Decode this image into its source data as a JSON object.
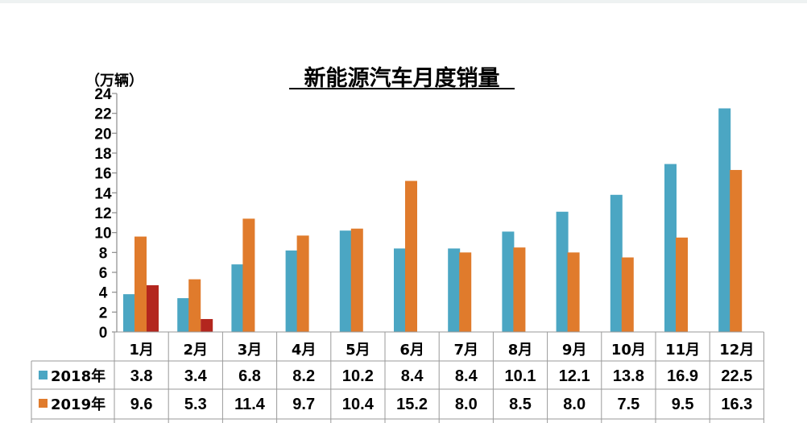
{
  "chart_data": {
    "type": "bar",
    "title": "新能源汽车月度销量",
    "unit_label": "（万辆）",
    "categories": [
      "1月",
      "2月",
      "3月",
      "4月",
      "5月",
      "6月",
      "7月",
      "8月",
      "9月",
      "10月",
      "11月",
      "12月"
    ],
    "ylim": [
      0,
      24
    ],
    "yticks": [
      0,
      2,
      4,
      6,
      8,
      10,
      12,
      14,
      16,
      18,
      20,
      22,
      24
    ],
    "grid": false,
    "legend_placement": "table-left",
    "series": [
      {
        "name": "2018年",
        "color": "#4ba6c3",
        "values": [
          3.8,
          3.4,
          6.8,
          8.2,
          10.2,
          8.4,
          8.4,
          10.1,
          12.1,
          13.8,
          16.9,
          22.5
        ],
        "labels": [
          "3.8",
          "3.4",
          "6.8",
          "8.2",
          "10.2",
          "8.4",
          "8.4",
          "10.1",
          "12.1",
          "13.8",
          "16.9",
          "22.5"
        ]
      },
      {
        "name": "2019年",
        "color": "#e07b2c",
        "values": [
          9.6,
          5.3,
          11.4,
          9.7,
          10.4,
          15.2,
          8.0,
          8.5,
          8.0,
          7.5,
          9.5,
          16.3
        ],
        "labels": [
          "9.6",
          "5.3",
          "11.4",
          "9.7",
          "10.4",
          "15.2",
          "8.0",
          "8.5",
          "8.0",
          "7.5",
          "9.5",
          "16.3"
        ]
      },
      {
        "name": "",
        "color": "#b3261e",
        "values": [
          4.7,
          1.3,
          null,
          null,
          null,
          null,
          null,
          null,
          null,
          null,
          null,
          null
        ]
      }
    ]
  }
}
